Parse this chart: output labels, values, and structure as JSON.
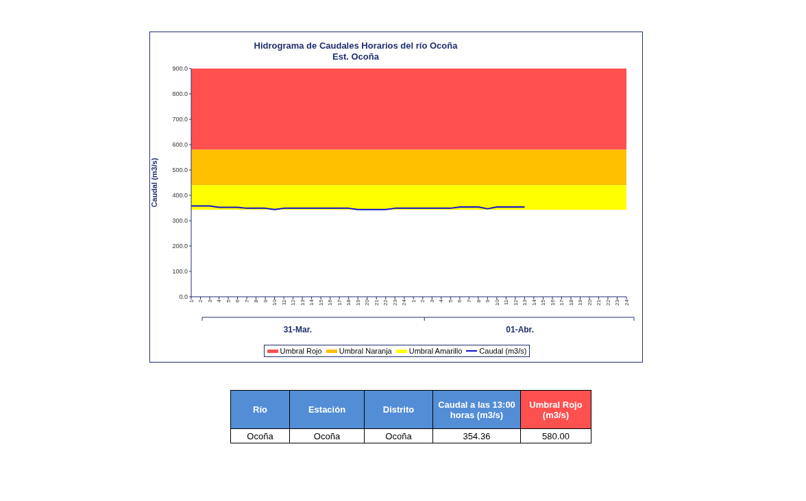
{
  "chart_data": [
    {
      "type": "line",
      "title": "Hidrograma de Caudales Horarios del río Ocoña",
      "subtitle": "Est. Ocoña",
      "ylabel": "Caudal (m3/s)",
      "categories": [
        "1",
        "2",
        "3",
        "4",
        "5",
        "6",
        "7",
        "8",
        "9",
        "10",
        "11",
        "12",
        "13",
        "14",
        "15",
        "16",
        "17",
        "18",
        "19",
        "20",
        "21",
        "22",
        "23",
        "24",
        "1",
        "2",
        "3",
        "4",
        "5",
        "6",
        "7",
        "8",
        "9",
        "10",
        "11",
        "12",
        "13",
        "14",
        "15",
        "16",
        "17",
        "18",
        "19",
        "20",
        "21",
        "22",
        "23",
        "24"
      ],
      "annotations": [
        "31-Mar.",
        "01-Abr."
      ],
      "series": [
        {
          "name": "Caudal (m3/s)",
          "color": "#1010d0",
          "values": [
            358,
            358,
            358,
            353,
            353,
            353,
            349,
            349,
            349,
            344,
            349,
            349,
            349,
            349,
            349,
            349,
            349,
            349,
            344,
            344,
            344,
            344,
            349,
            349,
            349,
            349,
            349,
            349,
            349,
            354,
            354,
            354,
            347,
            354,
            354,
            354,
            354,
            null,
            null,
            null,
            null,
            null,
            null,
            null,
            null,
            null,
            null,
            null
          ]
        }
      ],
      "bands": [
        {
          "axis": "y",
          "from": 580,
          "to": 900,
          "label": "Umbral Rojo",
          "color": "#ff5050"
        },
        {
          "axis": "y",
          "from": 440,
          "to": 580,
          "label": "Umbral Naranja",
          "color": "#ffc000"
        },
        {
          "axis": "y",
          "from": 343,
          "to": 440,
          "label": "Umbral Amarillo",
          "color": "#ffff00"
        }
      ],
      "ylim": [
        0,
        900
      ],
      "yticks": [
        {
          "value": 0,
          "label": "0.0"
        },
        {
          "value": 100,
          "label": "100.0"
        },
        {
          "value": 200,
          "label": "200.0"
        },
        {
          "value": 300,
          "label": "300.0"
        },
        {
          "value": 400,
          "label": "400.0"
        },
        {
          "value": 500,
          "label": "500.0"
        },
        {
          "value": 600,
          "label": "600.0"
        },
        {
          "value": 700,
          "label": "700.0"
        },
        {
          "value": 800,
          "label": "800.0"
        },
        {
          "value": 900,
          "label": "900.0"
        }
      ],
      "legend": "bottom",
      "marker": "none",
      "line_style": "solid"
    },
    {
      "type": "other",
      "annotations": [
        "Río",
        "Estación",
        "Distrito",
        "Caudal a las 13:00 horas (m3/s)",
        "Umbral Rojo (m3/s)",
        "Ocoña",
        "Ocoña",
        "Ocoña",
        "354.36",
        "580.00"
      ],
      "colors": [
        "#538dd5",
        "#538dd5",
        "#538dd5",
        "#538dd5",
        "#ff5050"
      ]
    }
  ]
}
